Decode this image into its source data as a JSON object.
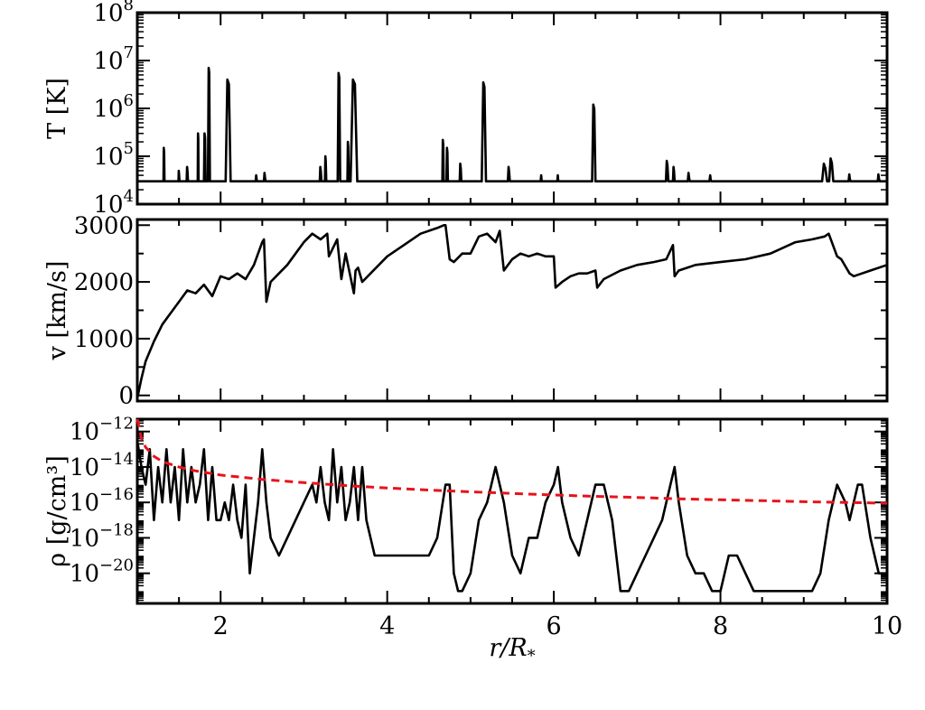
{
  "chart_data": [
    {
      "type": "line",
      "ylabel": "T [K]",
      "yscale": "log",
      "ylim": [
        10000,
        100000000
      ],
      "xlim": [
        1,
        10
      ],
      "yticks": [
        {
          "v": 10000,
          "base": "10",
          "exp": "4"
        },
        {
          "v": 100000,
          "base": "10",
          "exp": "5"
        },
        {
          "v": 1000000,
          "base": "10",
          "exp": "6"
        },
        {
          "v": 10000000,
          "base": "10",
          "exp": "7"
        },
        {
          "v": 100000000,
          "base": "10",
          "exp": "8"
        }
      ],
      "baseline": 30000,
      "series": [
        {
          "color": "#000000",
          "dash": false,
          "spikes": [
            [
              1.32,
              150000,
              0.006
            ],
            [
              1.5,
              50000,
              0.006
            ],
            [
              1.6,
              60000,
              0.008
            ],
            [
              1.73,
              300000,
              0.005
            ],
            [
              1.81,
              300000,
              0.01
            ],
            [
              1.86,
              7000000,
              0.012
            ],
            [
              2.09,
              4000000,
              0.03
            ],
            [
              2.43,
              40000,
              0.01
            ],
            [
              2.53,
              45000,
              0.01
            ],
            [
              3.2,
              60000,
              0.01
            ],
            [
              3.26,
              100000,
              0.008
            ],
            [
              3.42,
              5500000,
              0.015
            ],
            [
              3.53,
              200000,
              0.008
            ],
            [
              3.6,
              4000000,
              0.04
            ],
            [
              4.67,
              220000,
              0.008
            ],
            [
              4.72,
              150000,
              0.008
            ],
            [
              4.88,
              70000,
              0.01
            ],
            [
              5.16,
              3500000,
              0.025
            ],
            [
              5.46,
              60000,
              0.012
            ],
            [
              5.85,
              40000,
              0.008
            ],
            [
              6.05,
              40000,
              0.008
            ],
            [
              6.48,
              1200000,
              0.02
            ],
            [
              7.36,
              80000,
              0.015
            ],
            [
              7.44,
              60000,
              0.01
            ],
            [
              7.62,
              45000,
              0.012
            ],
            [
              7.88,
              40000,
              0.012
            ],
            [
              9.25,
              70000,
              0.03
            ],
            [
              9.33,
              90000,
              0.025
            ],
            [
              9.55,
              42000,
              0.012
            ],
            [
              9.9,
              42000,
              0.012
            ]
          ]
        }
      ]
    },
    {
      "type": "line",
      "ylabel": "v [km/s]",
      "yscale": "linear",
      "ylim": [
        -100,
        3100
      ],
      "xlim": [
        1,
        10
      ],
      "yticks": [
        {
          "v": 0,
          "label": "0"
        },
        {
          "v": 1000,
          "label": "1000"
        },
        {
          "v": 2000,
          "label": "2000"
        },
        {
          "v": 3000,
          "label": "3000"
        }
      ],
      "series": [
        {
          "color": "#000000",
          "dash": false,
          "x": [
            1.0,
            1.05,
            1.1,
            1.2,
            1.3,
            1.4,
            1.5,
            1.6,
            1.7,
            1.8,
            1.9,
            2.0,
            2.1,
            2.2,
            2.3,
            2.4,
            2.5,
            2.52,
            2.55,
            2.6,
            2.7,
            2.8,
            2.9,
            3.0,
            3.1,
            3.2,
            3.28,
            3.3,
            3.4,
            3.45,
            3.5,
            3.6,
            3.62,
            3.65,
            3.7,
            3.8,
            3.9,
            4.0,
            4.2,
            4.4,
            4.6,
            4.68,
            4.7,
            4.75,
            4.8,
            4.9,
            5.0,
            5.1,
            5.2,
            5.3,
            5.35,
            5.4,
            5.5,
            5.6,
            5.7,
            5.8,
            5.9,
            6.0,
            6.02,
            6.1,
            6.2,
            6.3,
            6.4,
            6.5,
            6.52,
            6.6,
            6.8,
            7.0,
            7.2,
            7.35,
            7.43,
            7.45,
            7.5,
            7.7,
            8.0,
            8.3,
            8.6,
            8.9,
            9.1,
            9.25,
            9.3,
            9.4,
            9.45,
            9.55,
            9.6,
            9.8,
            10.0
          ],
          "y": [
            -50,
            300,
            600,
            950,
            1250,
            1450,
            1650,
            1850,
            1800,
            1950,
            1750,
            2100,
            2050,
            2150,
            2050,
            2300,
            2700,
            2750,
            1650,
            2000,
            2150,
            2300,
            2500,
            2700,
            2850,
            2750,
            2850,
            2450,
            2750,
            2050,
            2500,
            1800,
            2200,
            2250,
            2000,
            2150,
            2300,
            2450,
            2650,
            2850,
            2950,
            3000,
            3000,
            2400,
            2350,
            2500,
            2500,
            2800,
            2850,
            2700,
            2900,
            2200,
            2400,
            2500,
            2450,
            2500,
            2450,
            2450,
            1900,
            2000,
            2100,
            2150,
            2150,
            2200,
            1900,
            2050,
            2200,
            2300,
            2350,
            2400,
            2650,
            2100,
            2200,
            2300,
            2350,
            2400,
            2500,
            2700,
            2750,
            2800,
            2850,
            2450,
            2400,
            2150,
            2100,
            2200,
            2300
          ]
        }
      ]
    },
    {
      "type": "line",
      "ylabel": "ρ [g/cm³]",
      "yscale": "log",
      "ylim": [
        2e-22,
        5e-12
      ],
      "xlim": [
        1,
        10
      ],
      "xlabel": "r/R*",
      "xticks": [
        {
          "v": 2,
          "label": "2"
        },
        {
          "v": 4,
          "label": "4"
        },
        {
          "v": 6,
          "label": "6"
        },
        {
          "v": 8,
          "label": "8"
        },
        {
          "v": 10,
          "label": "10"
        }
      ],
      "yticks": [
        {
          "v": 1e-20,
          "base": "10",
          "exp": "−20"
        },
        {
          "v": 1e-18,
          "base": "10",
          "exp": "−18"
        },
        {
          "v": 1e-16,
          "base": "10",
          "exp": "−16"
        },
        {
          "v": 1e-14,
          "base": "10",
          "exp": "−14"
        },
        {
          "v": 1e-12,
          "base": "10",
          "exp": "−12"
        }
      ],
      "series": [
        {
          "color": "#000000",
          "dash": false,
          "x": [
            1.0,
            1.05,
            1.1,
            1.15,
            1.2,
            1.25,
            1.3,
            1.35,
            1.4,
            1.45,
            1.5,
            1.55,
            1.6,
            1.65,
            1.7,
            1.75,
            1.8,
            1.85,
            1.9,
            1.95,
            2.0,
            2.05,
            2.1,
            2.15,
            2.2,
            2.25,
            2.3,
            2.35,
            2.4,
            2.45,
            2.5,
            2.55,
            2.6,
            2.7,
            2.8,
            2.9,
            3.0,
            3.1,
            3.15,
            3.2,
            3.25,
            3.3,
            3.35,
            3.4,
            3.45,
            3.5,
            3.55,
            3.6,
            3.65,
            3.7,
            3.75,
            3.85,
            4.0,
            4.2,
            4.4,
            4.5,
            4.6,
            4.7,
            4.75,
            4.8,
            4.85,
            4.9,
            5.0,
            5.1,
            5.2,
            5.3,
            5.35,
            5.4,
            5.5,
            5.6,
            5.7,
            5.8,
            5.9,
            6.0,
            6.05,
            6.1,
            6.2,
            6.3,
            6.4,
            6.5,
            6.6,
            6.7,
            6.8,
            6.9,
            7.0,
            7.1,
            7.2,
            7.3,
            7.4,
            7.45,
            7.5,
            7.6,
            7.7,
            7.8,
            7.9,
            8.0,
            8.1,
            8.2,
            8.3,
            8.4,
            8.5,
            8.6,
            8.7,
            8.8,
            8.9,
            9.0,
            9.1,
            9.2,
            9.3,
            9.4,
            9.5,
            9.55,
            9.6,
            9.65,
            9.7,
            9.8,
            9.9,
            10.0
          ],
          "y": [
            3e-13,
            1e-14,
            1e-15,
            1e-13,
            1e-17,
            1e-14,
            1e-16,
            1e-13,
            1e-16,
            1e-14,
            1e-17,
            1e-13,
            1e-16,
            1e-14,
            1e-16,
            1e-15,
            1e-13,
            1e-17,
            1e-14,
            1e-17,
            1e-17,
            1e-16,
            1e-17,
            1e-15,
            1e-17,
            1e-18,
            1e-15,
            1e-20,
            1e-18,
            1e-16,
            1e-13,
            1e-16,
            1e-18,
            1e-19,
            1e-18,
            1e-17,
            1e-16,
            1e-15,
            1e-16,
            1e-14,
            1e-16,
            1e-17,
            1e-13,
            1e-16,
            1e-14,
            1e-17,
            1e-16,
            1e-14,
            1e-17,
            1e-14,
            1e-17,
            1e-19,
            1e-19,
            1e-19,
            1e-19,
            1e-19,
            1e-18,
            1e-15,
            1e-15,
            1e-20,
            1e-21,
            1e-21,
            1e-20,
            1e-17,
            1e-16,
            1e-14,
            1e-15,
            1e-16,
            1e-19,
            1e-20,
            1e-18,
            1e-18,
            1e-16,
            1e-15,
            1e-14,
            1e-16,
            1e-18,
            1e-19,
            1e-17,
            1e-15,
            1e-15,
            1e-17,
            1e-21,
            1e-21,
            1e-20,
            1e-19,
            1e-18,
            1e-17,
            1e-15,
            1e-14,
            1e-16,
            1e-19,
            1e-20,
            1e-20,
            1e-21,
            1e-21,
            1e-19,
            1e-19,
            1e-20,
            1e-21,
            1e-21,
            1e-21,
            1e-21,
            1e-21,
            1e-21,
            1e-21,
            1e-21,
            1e-20,
            1e-17,
            1e-15,
            1e-16,
            1e-17,
            1e-16,
            1e-15,
            1e-15,
            1e-18,
            1e-20,
            1e-20
          ]
        },
        {
          "color": "#e8121b",
          "dash": true,
          "x": [
            1.0,
            1.05,
            1.1,
            1.2,
            1.3,
            1.5,
            1.7,
            2.0,
            2.5,
            3.0,
            3.5,
            4.0,
            4.5,
            5.0,
            5.5,
            6.0,
            6.5,
            7.0,
            7.5,
            8.0,
            8.5,
            9.0,
            9.5,
            10.0
          ],
          "y": [
            5e-12,
            4e-13,
            1.3e-13,
            4e-14,
            2e-14,
            1e-14,
            6e-15,
            3.5e-15,
            2e-15,
            1.3e-15,
            9e-16,
            6.5e-16,
            5e-16,
            4e-16,
            3.2e-16,
            2.6e-16,
            2.2e-16,
            1.9e-16,
            1.6e-16,
            1.4e-16,
            1.25e-16,
            1.1e-16,
            1e-16,
            9e-17
          ]
        }
      ]
    }
  ]
}
